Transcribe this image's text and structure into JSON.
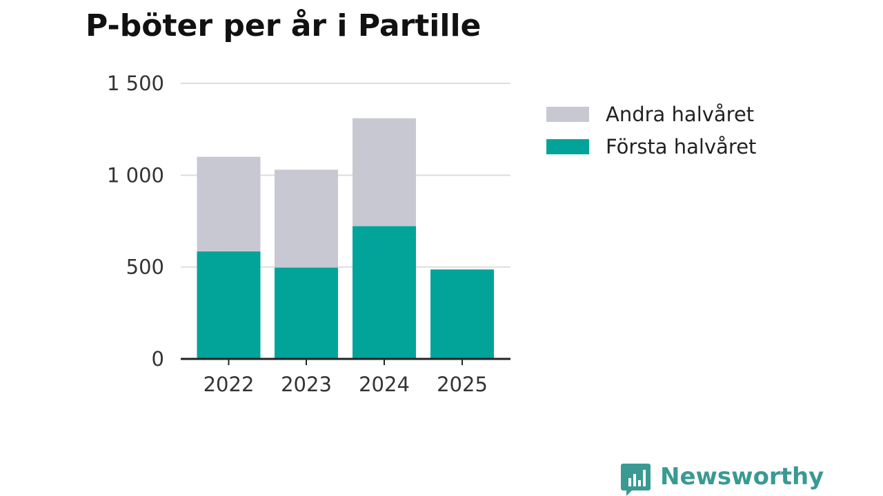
{
  "chart_data": {
    "type": "bar",
    "stacked": true,
    "title": "P-böter per år i Partille",
    "categories": [
      "2022",
      "2023",
      "2024",
      "2025"
    ],
    "series": [
      {
        "name": "Första halvåret",
        "values": [
          585,
          497,
          723,
          487
        ],
        "color": "#02a49a"
      },
      {
        "name": "Andra halvåret",
        "values": [
          515,
          533,
          587,
          0
        ],
        "color": "#c8c8d2"
      }
    ],
    "legend_order": [
      "Andra halvåret",
      "Första halvåret"
    ],
    "ylim": [
      0,
      1500
    ],
    "yticks": [
      0,
      500,
      1000,
      1500
    ],
    "ytick_labels": [
      "0",
      "500",
      "1 000",
      "1 500"
    ],
    "xlabel": "",
    "ylabel": "",
    "grid": true,
    "legend_position": "right"
  },
  "brand": {
    "name": "Newsworthy",
    "color": "#3a9a93",
    "icon": "bar-chart-speech-bubble-icon"
  }
}
